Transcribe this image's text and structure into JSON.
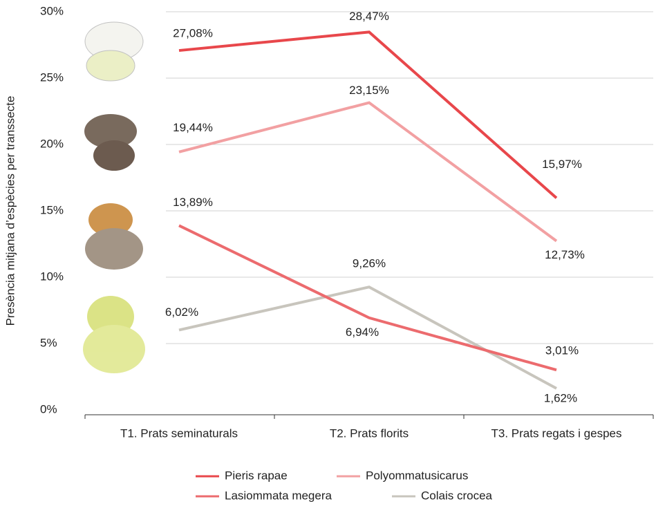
{
  "chart_data": {
    "type": "line",
    "y_label": "Presència mitjana d’espècies per transsecte",
    "categories": [
      "T1. Prats seminaturals",
      "T2. Prats florits",
      "T3. Prats regats i gespes"
    ],
    "series": [
      {
        "name": "Pieris rapae",
        "color": "#e8474b",
        "values": [
          27.08,
          28.47,
          15.97
        ],
        "value_labels": [
          "27,08%",
          "28,47%",
          "15,97%"
        ]
      },
      {
        "name": "Polyommatusicarus",
        "color": "#f2a0a2",
        "values": [
          19.44,
          23.15,
          12.73
        ],
        "value_labels": [
          "19,44%",
          "23,15%",
          "12,73%"
        ]
      },
      {
        "name": "Lasiommata megera",
        "color": "#ec6b6e",
        "values": [
          13.89,
          6.94,
          3.01
        ],
        "value_labels": [
          "13,89%",
          "6,94%",
          "3,01%"
        ]
      },
      {
        "name": "Colais crocea",
        "color": "#c8c5bd",
        "values": [
          6.02,
          9.26,
          1.62
        ],
        "value_labels": [
          "6,02%",
          "9,26%",
          "1,62%"
        ]
      }
    ],
    "ylim": [
      0,
      30
    ],
    "yticks": [
      {
        "value": 0,
        "label": "0%"
      },
      {
        "value": 5,
        "label": "5%"
      },
      {
        "value": 10,
        "label": "10%"
      },
      {
        "value": 15,
        "label": "15%"
      },
      {
        "value": 20,
        "label": "20%"
      },
      {
        "value": 25,
        "label": "25%"
      },
      {
        "value": 30,
        "label": "30%"
      }
    ],
    "grid": true
  }
}
